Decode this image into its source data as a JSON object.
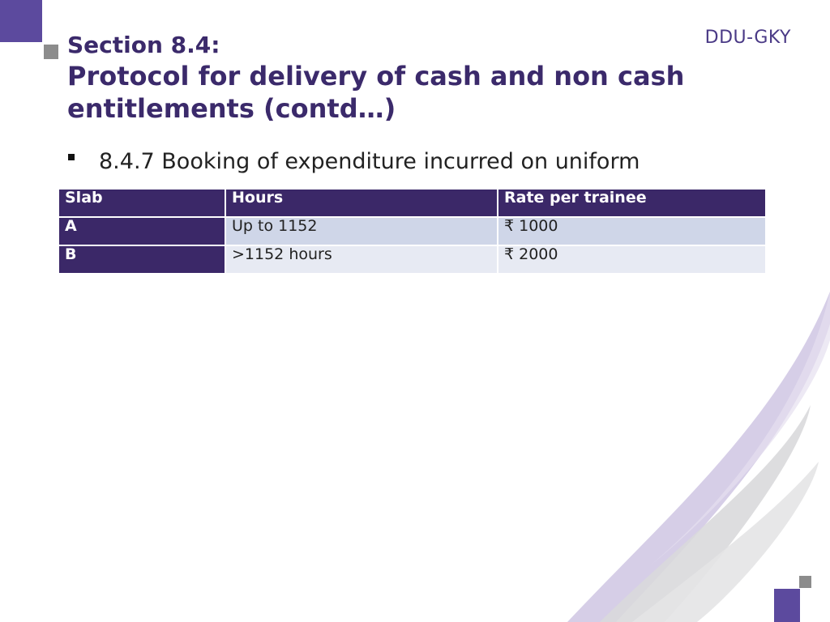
{
  "brand": "DDU-GKY",
  "title": {
    "line1": "Section 8.4:",
    "line2": "Protocol for delivery of cash and non cash",
    "line3": "entitlements (contd…)"
  },
  "bullet": "8.4.7 Booking of expenditure incurred on uniform",
  "table": {
    "headers": [
      "Slab",
      "Hours",
      "Rate per trainee"
    ],
    "rows": [
      [
        "A",
        "Up to 1152",
        "₹ 1000"
      ],
      [
        "B",
        ">1152 hours",
        "₹ 2000"
      ]
    ]
  },
  "colors": {
    "accent": "#5c4a9e",
    "title": "#3b2a6b",
    "table_header": "#3b2868",
    "row_a": "#cfd6e8",
    "row_b": "#e7eaf3"
  }
}
